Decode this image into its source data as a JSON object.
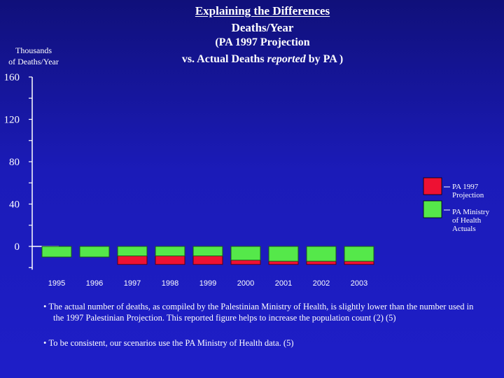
{
  "header": {
    "title_line1": "Explaining the Differences",
    "title_line2": "Deaths/Year",
    "subtitle_line1": "(PA 1997 Projection",
    "subtitle_line2_pre": "vs. Actual Deaths ",
    "subtitle_line2_em": "reported",
    "subtitle_line2_post": " by PA )"
  },
  "axis": {
    "ylabel_line1": "Thousands",
    "ylabel_line2": "of Deaths/Year"
  },
  "legend": [
    {
      "label_line1": "PA 1997",
      "label_line2": "Projection",
      "label_line3": "",
      "color": "#ee1133"
    },
    {
      "label_line1": "PA Ministry",
      "label_line2": "of Health",
      "label_line3": "Actuals",
      "color": "#55e84a"
    }
  ],
  "chart_data": {
    "type": "bar",
    "title": "Explaining the Differences Deaths/Year",
    "subtitle": "(PA 1997 Projection vs. Actual Deaths reported by PA )",
    "ylabel": "Thousands of Deaths/Year",
    "xlabel": "",
    "categories": [
      "1995",
      "1996",
      "1997",
      "1998",
      "1999",
      "2000",
      "2001",
      "2002",
      "2003"
    ],
    "yticks": [
      "160",
      "120",
      "80",
      "40",
      "0"
    ],
    "ylim": [
      -20,
      160
    ],
    "series": [
      {
        "name": "PA 1997 Projection",
        "color": "#ee1133",
        "values": [
          null,
          null,
          -17,
          -17,
          -17,
          -17,
          -17,
          -17,
          -17
        ]
      },
      {
        "name": "PA Ministry of Health Actuals",
        "color": "#55e84a",
        "values": [
          -10,
          -10,
          -9,
          -9,
          -9,
          -13,
          -14,
          -14,
          -14
        ]
      }
    ],
    "grid": false,
    "legend_position": "right"
  },
  "notes": [
    "The actual number of deaths, as compiled by the Palestinian Ministry of Health, is slightly lower than the number used in the 1997 Palestinian Projection.  This reported figure helps to increase the population count (2) (5)",
    "To be consistent, our scenarios use the PA Ministry of Health data. (5)"
  ],
  "colors": {
    "background_top": "#10107a",
    "background_bottom": "#1e1ec8",
    "axis": "#ffffff"
  }
}
